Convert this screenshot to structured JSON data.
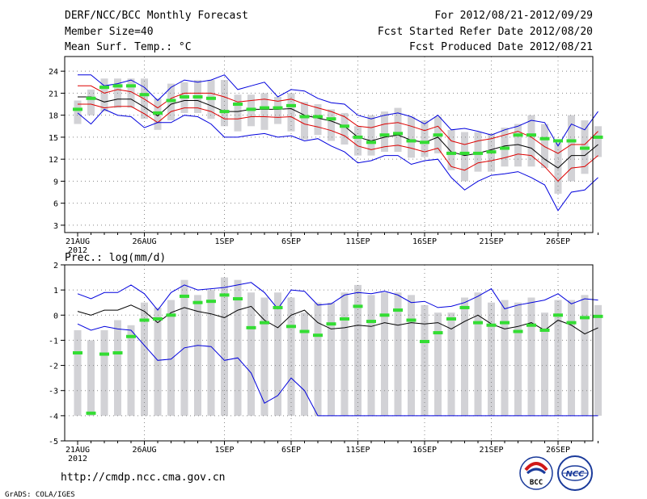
{
  "header": {
    "title": "DERF/NCC/BCC Monthly Forecast",
    "member_size": "Member Size=40",
    "variable": "Mean Surf. Temp.: °C",
    "period": "For 2012/08/21-2012/09/29",
    "started": "Fcst Started Refer Date 2012/08/20",
    "produced": "Fcst Produced Date 2012/08/21"
  },
  "footer": {
    "url": "http://cmdp.ncc.cma.gov.cn",
    "credit": "GrADS: COLA/IGES",
    "logo_bcc": "BCC",
    "logo_ncc": "NCC"
  },
  "colors": {
    "box": "#d2d2d6",
    "max_line": "#0000dd",
    "min_line": "#0000dd",
    "mean_line": "#000000",
    "std_line": "#dd0000",
    "marker": "#33dd33",
    "grid": "#888888"
  },
  "chart_data": [
    {
      "type": "box-line",
      "title": "Mean Surf. Temp.: °C",
      "xlabel": "",
      "ylabel": "°C",
      "ylim": [
        2,
        26
      ],
      "yticks": [
        3,
        6,
        9,
        12,
        15,
        18,
        21,
        24
      ],
      "xlim": [
        0,
        40
      ],
      "x_ticks": [
        {
          "day": 0,
          "label": "21AUG",
          "sub": "2012"
        },
        {
          "day": 5,
          "label": "26AUG"
        },
        {
          "day": 11,
          "label": "1SEP"
        },
        {
          "day": 16,
          "label": "6SEP"
        },
        {
          "day": 21,
          "label": "11SEP"
        },
        {
          "day": 26,
          "label": "16SEP"
        },
        {
          "day": 31,
          "label": "21SEP"
        },
        {
          "day": 36,
          "label": "26SEP"
        }
      ],
      "days": [
        0,
        1,
        2,
        3,
        4,
        5,
        6,
        7,
        8,
        9,
        10,
        11,
        12,
        13,
        14,
        15,
        16,
        17,
        18,
        19,
        20,
        21,
        22,
        23,
        24,
        25,
        26,
        27,
        28,
        29,
        30,
        31,
        32,
        33,
        34,
        35,
        36,
        37,
        38,
        39
      ],
      "series": [
        {
          "name": "max",
          "values": [
            23.5,
            23.5,
            22.0,
            22.3,
            22.8,
            21.8,
            20.0,
            21.8,
            22.8,
            22.5,
            22.8,
            23.5,
            21.5,
            22.0,
            22.5,
            20.5,
            21.5,
            21.3,
            20.3,
            19.7,
            19.5,
            18.0,
            17.5,
            18.0,
            18.3,
            17.8,
            16.8,
            18.0,
            16.0,
            16.2,
            15.8,
            15.3,
            16.0,
            16.5,
            17.3,
            17.0,
            13.8,
            16.8,
            16.0,
            18.5
          ]
        },
        {
          "name": "mean_plus_std",
          "values": [
            22.0,
            22.0,
            21.0,
            21.5,
            21.2,
            20.2,
            19.0,
            20.3,
            21.0,
            21.0,
            21.0,
            20.5,
            19.8,
            20.0,
            20.2,
            19.9,
            20.2,
            19.5,
            19.0,
            18.5,
            17.8,
            16.5,
            16.3,
            16.8,
            17.0,
            16.5,
            15.9,
            16.5,
            14.5,
            14.0,
            14.5,
            14.8,
            15.3,
            15.8,
            15.0,
            13.7,
            12.8,
            14.0,
            14.0,
            15.8
          ]
        },
        {
          "name": "mean",
          "values": [
            20.5,
            20.5,
            19.8,
            20.2,
            20.2,
            19.1,
            17.9,
            19.5,
            20.0,
            20.0,
            19.3,
            18.5,
            18.5,
            18.8,
            18.8,
            18.8,
            18.9,
            18.0,
            17.6,
            17.2,
            16.5,
            15.0,
            14.5,
            15.0,
            15.3,
            14.6,
            14.3,
            15.0,
            13.0,
            12.5,
            12.8,
            13.3,
            13.8,
            14.0,
            13.5,
            12.0,
            10.8,
            12.5,
            12.5,
            14.0
          ]
        },
        {
          "name": "mean_minus_std",
          "values": [
            19.5,
            19.5,
            19.0,
            19.2,
            19.2,
            18.2,
            17.0,
            18.5,
            19.0,
            19.0,
            18.5,
            17.5,
            17.5,
            17.8,
            17.8,
            17.7,
            17.8,
            16.8,
            16.4,
            15.9,
            15.2,
            13.8,
            13.3,
            13.7,
            13.9,
            13.5,
            13.0,
            13.5,
            11.0,
            10.5,
            11.5,
            11.8,
            12.2,
            12.7,
            12.5,
            11.0,
            9.0,
            10.8,
            11.0,
            12.5
          ]
        },
        {
          "name": "min",
          "values": [
            18.3,
            16.8,
            18.8,
            18.0,
            17.8,
            16.3,
            17.0,
            17.0,
            18.0,
            17.8,
            16.8,
            15.0,
            15.0,
            15.3,
            15.5,
            15.0,
            15.2,
            14.5,
            14.8,
            13.8,
            13.0,
            11.5,
            11.8,
            12.5,
            12.5,
            11.3,
            11.8,
            12.0,
            9.5,
            7.8,
            9.0,
            9.8,
            10.0,
            10.3,
            9.5,
            8.5,
            5.0,
            7.5,
            7.8,
            9.5
          ]
        },
        {
          "name": "observed",
          "values": [
            18.8,
            20.3,
            21.8,
            22.0,
            22.0,
            20.8,
            18.3,
            20.0,
            20.5,
            20.5,
            20.3,
            18.5,
            19.5,
            18.8,
            19.0,
            19.0,
            19.3,
            17.8,
            17.8,
            17.5,
            16.5,
            15.0,
            14.3,
            15.3,
            15.5,
            14.5,
            14.3,
            15.3,
            12.8,
            12.8,
            12.8,
            13.0,
            13.5,
            15.3,
            15.3,
            14.8,
            14.5,
            14.5,
            13.5,
            15.0
          ]
        }
      ],
      "box_top": [
        20.0,
        21.5,
        23.0,
        23.0,
        23.0,
        23.0,
        20.3,
        22.3,
        22.5,
        22.8,
        22.8,
        22.8,
        20.8,
        20.8,
        21.0,
        20.5,
        21.0,
        19.8,
        19.5,
        18.8,
        18.3,
        16.5,
        18.0,
        18.5,
        19.0,
        17.8,
        17.3,
        17.8,
        16.0,
        15.7,
        15.7,
        15.5,
        16.3,
        16.8,
        18.0,
        16.8,
        14.2,
        18.0,
        17.3,
        16.5
      ],
      "box_bottom": [
        16.8,
        18.0,
        18.5,
        19.0,
        19.0,
        17.5,
        16.0,
        17.3,
        18.3,
        18.3,
        17.5,
        16.5,
        15.8,
        16.5,
        16.0,
        16.8,
        15.8,
        14.7,
        15.3,
        14.5,
        14.0,
        12.5,
        12.5,
        13.0,
        13.0,
        12.2,
        12.3,
        12.8,
        10.5,
        9.0,
        10.3,
        10.3,
        11.0,
        11.0,
        11.0,
        10.8,
        7.3,
        9.0,
        10.0,
        12.3
      ]
    },
    {
      "type": "box-line",
      "title": "Prec.: log(mm/d)",
      "xlabel": "",
      "ylabel": "log(mm/d)",
      "ylim": [
        -5,
        2
      ],
      "yticks": [
        -5,
        -4,
        -3,
        -2,
        -1,
        0,
        1,
        2
      ],
      "xlim": [
        0,
        40
      ],
      "x_ticks": [
        {
          "day": 0,
          "label": "21AUG",
          "sub": "2012"
        },
        {
          "day": 5,
          "label": "26AUG"
        },
        {
          "day": 11,
          "label": "1SEP"
        },
        {
          "day": 16,
          "label": "6SEP"
        },
        {
          "day": 21,
          "label": "11SEP"
        },
        {
          "day": 26,
          "label": "16SEP"
        },
        {
          "day": 31,
          "label": "21SEP"
        },
        {
          "day": 36,
          "label": "26SEP"
        }
      ],
      "days": [
        0,
        1,
        2,
        3,
        4,
        5,
        6,
        7,
        8,
        9,
        10,
        11,
        12,
        13,
        14,
        15,
        16,
        17,
        18,
        19,
        20,
        21,
        22,
        23,
        24,
        25,
        26,
        27,
        28,
        29,
        30,
        31,
        32,
        33,
        34,
        35,
        36,
        37,
        38,
        39
      ],
      "series": [
        {
          "name": "max",
          "values": [
            0.85,
            0.65,
            0.9,
            0.9,
            1.2,
            0.85,
            0.2,
            0.9,
            1.2,
            1.0,
            1.05,
            1.1,
            1.2,
            1.3,
            0.9,
            0.25,
            1.0,
            0.95,
            0.4,
            0.45,
            0.8,
            0.9,
            0.85,
            0.95,
            0.8,
            0.5,
            0.55,
            0.3,
            0.35,
            0.5,
            0.75,
            1.05,
            0.25,
            0.4,
            0.5,
            0.6,
            0.85,
            0.45,
            0.65,
            0.6
          ]
        },
        {
          "name": "mean",
          "values": [
            0.15,
            0.0,
            0.2,
            0.2,
            0.4,
            0.15,
            -0.3,
            0.1,
            0.3,
            0.15,
            0.05,
            -0.1,
            0.2,
            0.35,
            -0.2,
            -0.5,
            0.0,
            0.2,
            -0.3,
            -0.55,
            -0.5,
            -0.4,
            -0.45,
            -0.3,
            -0.4,
            -0.3,
            -0.35,
            -0.3,
            -0.55,
            -0.25,
            0.0,
            -0.35,
            -0.55,
            -0.45,
            -0.3,
            -0.6,
            -0.2,
            -0.4,
            -0.75,
            -0.5
          ]
        },
        {
          "name": "min",
          "values": [
            -0.35,
            -0.6,
            -0.45,
            -0.55,
            -0.6,
            -1.2,
            -1.8,
            -1.75,
            -1.3,
            -1.2,
            -1.25,
            -1.8,
            -1.7,
            -2.3,
            -3.5,
            -3.2,
            -2.5,
            -3.0,
            -4.0,
            -4.0,
            -4.0,
            -4.0,
            -4.0,
            -4.0,
            -4.0,
            -4.0,
            -4.0,
            -4.0,
            -4.0,
            -4.0,
            -4.0,
            -4.0,
            -4.0,
            -4.0,
            -4.0,
            -4.0,
            -4.0,
            -4.0,
            -4.0,
            -4.0
          ]
        },
        {
          "name": "observed",
          "values": [
            -1.5,
            -3.9,
            -1.55,
            -1.5,
            -0.85,
            -0.2,
            -0.15,
            0.0,
            0.75,
            0.5,
            0.55,
            0.8,
            0.65,
            -0.5,
            -0.3,
            0.3,
            -0.45,
            -0.65,
            -0.8,
            -0.35,
            -0.15,
            0.35,
            -0.25,
            0.0,
            0.2,
            -0.2,
            -1.05,
            -0.7,
            -0.15,
            0.3,
            -0.3,
            -0.4,
            -0.3,
            -0.65,
            -0.4,
            -0.6,
            0.0,
            -0.3,
            -0.1,
            -0.05
          ]
        }
      ],
      "box_top": [
        -0.6,
        -1.0,
        -0.6,
        -0.2,
        -0.4,
        0.5,
        0.3,
        0.6,
        1.4,
        0.8,
        1.0,
        1.5,
        1.4,
        0.9,
        0.7,
        0.9,
        0.7,
        0.1,
        0.5,
        0.5,
        0.9,
        1.2,
        0.8,
        0.9,
        0.9,
        0.8,
        0.4,
        0.1,
        0.1,
        0.7,
        0.9,
        0.5,
        0.6,
        0.5,
        0.7,
        0.1,
        0.6,
        0.6,
        0.8,
        0.4
      ],
      "box_bottom": [
        -4.0,
        -4.0,
        -4.0,
        -4.0,
        -4.0,
        -4.0,
        -4.0,
        -4.0,
        -4.0,
        -4.0,
        -4.0,
        -4.0,
        -4.0,
        -4.0,
        -4.0,
        -4.0,
        -4.0,
        -4.0,
        -4.0,
        -4.0,
        -4.0,
        -4.0,
        -4.0,
        -4.0,
        -4.0,
        -4.0,
        -4.0,
        -4.0,
        -4.0,
        -4.0,
        -4.0,
        -4.0,
        -4.0,
        -4.0,
        -4.0,
        -4.0,
        -4.0,
        -4.0,
        -4.0,
        -4.0
      ]
    }
  ]
}
